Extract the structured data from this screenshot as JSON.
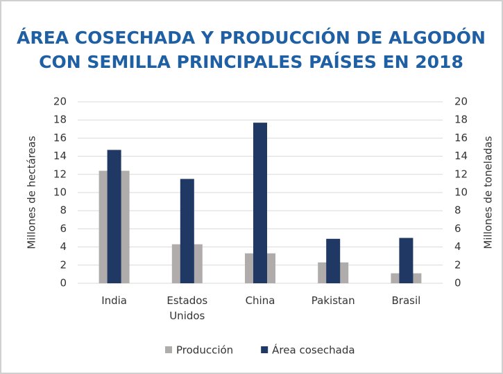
{
  "chart_data": {
    "type": "bar",
    "title": [
      "ÁREA COSECHADA Y PRODUCCIÓN DE ALGODÓN",
      "CON SEMILLA PRINCIPALES PAÍSES EN 2018"
    ],
    "y_label": "Millones de hectáreas",
    "y2_label": "Millones  de toneladas",
    "categories": [
      "India",
      "Estados Unidos",
      "China",
      "Pakistan",
      "Brasil"
    ],
    "series": [
      {
        "name": "Producción",
        "color": "#b0acac",
        "values": [
          12.4,
          4.3,
          3.3,
          2.3,
          1.1
        ]
      },
      {
        "name": "Área cosechada",
        "color": "#1f3864",
        "axis": "y2",
        "values": [
          14.7,
          11.5,
          17.7,
          4.9,
          5.0
        ]
      }
    ],
    "ylim": [
      0,
      20
    ],
    "yticks": [
      0,
      2,
      4,
      6,
      8,
      10,
      12,
      14,
      16,
      18,
      20
    ],
    "y2lim": [
      0,
      20
    ],
    "y2ticks": [
      0,
      2,
      4,
      6,
      8,
      10,
      12,
      14,
      16,
      18,
      20
    ],
    "grid": true,
    "legend": "bottom"
  }
}
